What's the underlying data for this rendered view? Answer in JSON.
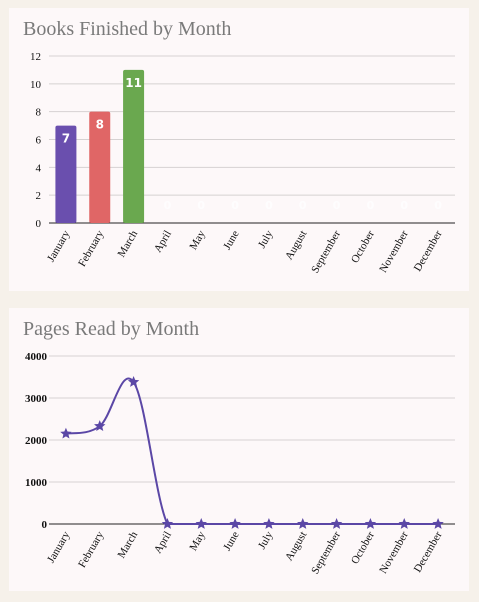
{
  "chart_data": [
    {
      "type": "bar",
      "title": "Books Finished by Month",
      "categories": [
        "January",
        "February",
        "March",
        "April",
        "May",
        "June",
        "July",
        "August",
        "September",
        "October",
        "November",
        "December"
      ],
      "values": [
        7,
        8,
        11,
        0,
        0,
        0,
        0,
        0,
        0,
        0,
        0,
        0
      ],
      "colors": [
        "#6a4fae",
        "#e06666",
        "#6aa84f",
        "#6a4fae",
        "#6a4fae",
        "#6a4fae",
        "#6a4fae",
        "#6a4fae",
        "#6a4fae",
        "#6a4fae",
        "#6a4fae",
        "#6a4fae"
      ],
      "data_labels": [
        "7",
        "8",
        "11",
        "0",
        "0",
        "0",
        "0",
        "0",
        "0",
        "0",
        "0",
        "0"
      ],
      "xlabel": "",
      "ylabel": "",
      "ylim": [
        0,
        12
      ],
      "yticks": [
        0,
        2,
        4,
        6,
        8,
        10,
        12
      ],
      "grid": true,
      "legend": "none"
    },
    {
      "type": "line",
      "title": "Pages Read by Month",
      "categories": [
        "January",
        "February",
        "March",
        "April",
        "May",
        "June",
        "July",
        "August",
        "September",
        "October",
        "November",
        "December"
      ],
      "values": [
        2150,
        2330,
        3380,
        0,
        0,
        0,
        0,
        0,
        0,
        0,
        0,
        0
      ],
      "color": "#5b47a6",
      "marker": "star",
      "smooth": true,
      "xlabel": "",
      "ylabel": "",
      "ylim": [
        0,
        4000
      ],
      "yticks": [
        0,
        1000,
        2000,
        3000,
        4000
      ],
      "grid": true,
      "legend": "none"
    }
  ]
}
